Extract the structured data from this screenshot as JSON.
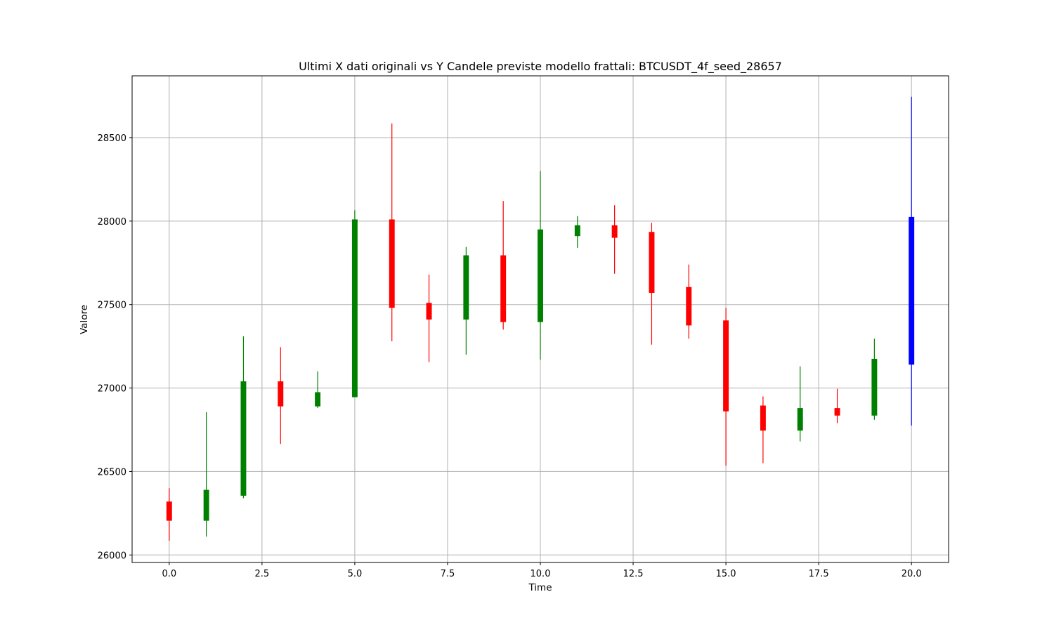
{
  "chart_data": {
    "type": "candlestick",
    "title": "Ultimi X dati originali vs Y Candele previste modello frattali: BTCUSDT_4f_seed_28657",
    "xlabel": "Time",
    "ylabel": "Valore",
    "xlim": [
      -1,
      21
    ],
    "ylim": [
      25955,
      28870
    ],
    "x_ticks": [
      0.0,
      2.5,
      5.0,
      7.5,
      10.0,
      12.5,
      15.0,
      17.5,
      20.0
    ],
    "x_tick_labels": [
      "0.0",
      "2.5",
      "5.0",
      "7.5",
      "10.0",
      "12.5",
      "15.0",
      "17.5",
      "20.0"
    ],
    "y_ticks": [
      26000,
      26500,
      27000,
      27500,
      28000,
      28500
    ],
    "y_tick_labels": [
      "26000",
      "26500",
      "27000",
      "27500",
      "28000",
      "28500"
    ],
    "grid": true,
    "colors": {
      "up": "#008000",
      "down": "#ff0000",
      "predicted": "#0000ff",
      "grid": "#b0b0b0"
    },
    "candles": [
      {
        "x": 0,
        "open": 26320,
        "high": 26400,
        "low": 26085,
        "close": 26205,
        "kind": "down"
      },
      {
        "x": 1,
        "open": 26205,
        "high": 26855,
        "low": 26110,
        "close": 26390,
        "kind": "up"
      },
      {
        "x": 2,
        "open": 26355,
        "high": 27310,
        "low": 26340,
        "close": 27040,
        "kind": "up"
      },
      {
        "x": 3,
        "open": 27040,
        "high": 27245,
        "low": 26665,
        "close": 26890,
        "kind": "down"
      },
      {
        "x": 4,
        "open": 26890,
        "high": 27100,
        "low": 26880,
        "close": 26975,
        "kind": "up"
      },
      {
        "x": 5,
        "open": 26945,
        "high": 28065,
        "low": 26945,
        "close": 28010,
        "kind": "up"
      },
      {
        "x": 6,
        "open": 28010,
        "high": 28585,
        "low": 27280,
        "close": 27480,
        "kind": "down"
      },
      {
        "x": 7,
        "open": 27510,
        "high": 27680,
        "low": 27155,
        "close": 27410,
        "kind": "down"
      },
      {
        "x": 8,
        "open": 27410,
        "high": 27845,
        "low": 27200,
        "close": 27795,
        "kind": "up"
      },
      {
        "x": 9,
        "open": 27795,
        "high": 28120,
        "low": 27350,
        "close": 27395,
        "kind": "down"
      },
      {
        "x": 10,
        "open": 27395,
        "high": 28300,
        "low": 27170,
        "close": 27950,
        "kind": "up"
      },
      {
        "x": 11,
        "open": 27910,
        "high": 28030,
        "low": 27840,
        "close": 27975,
        "kind": "up"
      },
      {
        "x": 12,
        "open": 27975,
        "high": 28095,
        "low": 27685,
        "close": 27900,
        "kind": "down"
      },
      {
        "x": 13,
        "open": 27935,
        "high": 27990,
        "low": 27260,
        "close": 27570,
        "kind": "down"
      },
      {
        "x": 14,
        "open": 27605,
        "high": 27740,
        "low": 27295,
        "close": 27375,
        "kind": "down"
      },
      {
        "x": 15,
        "open": 27405,
        "high": 27480,
        "low": 26535,
        "close": 26860,
        "kind": "down"
      },
      {
        "x": 16,
        "open": 26895,
        "high": 26950,
        "low": 26550,
        "close": 26745,
        "kind": "down"
      },
      {
        "x": 17,
        "open": 26745,
        "high": 27130,
        "low": 26680,
        "close": 26880,
        "kind": "up"
      },
      {
        "x": 18,
        "open": 26880,
        "high": 26995,
        "low": 26790,
        "close": 26835,
        "kind": "down"
      },
      {
        "x": 19,
        "open": 26835,
        "high": 27295,
        "low": 26810,
        "close": 27175,
        "kind": "up"
      },
      {
        "x": 20,
        "open": 27140,
        "high": 28745,
        "low": 26775,
        "close": 28025,
        "kind": "predicted"
      }
    ]
  }
}
